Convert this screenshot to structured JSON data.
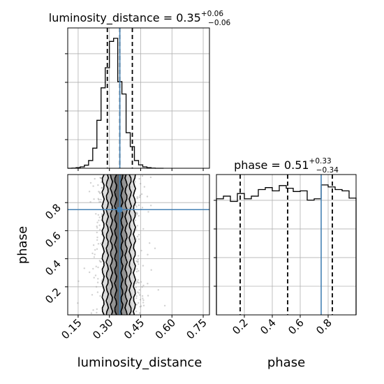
{
  "chart_data": {
    "type": "corner",
    "parameters": [
      "luminosity_distance",
      "phase"
    ],
    "truth": {
      "luminosity_distance": 0.35,
      "phase": 0.75
    },
    "truth_color": "#4682b4",
    "hist_color": "#000000",
    "grid": true,
    "axes": {
      "luminosity_distance": {
        "xlabel": "luminosity_distance",
        "range": [
          0.1,
          0.78
        ],
        "ticks": [
          0.15,
          0.3,
          0.45,
          0.6,
          0.75
        ],
        "tick_labels": [
          "0.15",
          "0.30",
          "0.45",
          "0.60",
          "0.75"
        ]
      },
      "phase": {
        "xlabel": "phase",
        "ylabel": "phase",
        "range": [
          0.0,
          1.0
        ],
        "ticks": [
          0.2,
          0.4,
          0.6,
          0.8
        ],
        "tick_labels": [
          "0.2",
          "0.4",
          "0.6",
          "0.8"
        ]
      }
    },
    "panels": [
      {
        "name": "luminosity_distance",
        "kind": "hist1d",
        "title": {
          "name": "luminosity_distance",
          "value": "0.35",
          "plus": "+0.06",
          "minus": "−0.06"
        },
        "quantiles": [
          0.29,
          0.35,
          0.41
        ],
        "bins": [
          0.1,
          0.12,
          0.14,
          0.16,
          0.18,
          0.2,
          0.22,
          0.24,
          0.26,
          0.28,
          0.3,
          0.32,
          0.34,
          0.36,
          0.38,
          0.4,
          0.42,
          0.44,
          0.46,
          0.48,
          0.5,
          0.52,
          0.54,
          0.56
        ],
        "counts": [
          0,
          1,
          4,
          9,
          20,
          50,
          130,
          310,
          520,
          650,
          820,
          840,
          560,
          480,
          230,
          140,
          50,
          22,
          9,
          4,
          1,
          0,
          0
        ]
      },
      {
        "name": "phase",
        "kind": "hist1d",
        "title": {
          "name": "phase",
          "value": "0.51",
          "plus": "+0.33",
          "minus": "−0.34"
        },
        "quantiles": [
          0.17,
          0.51,
          0.83
        ],
        "bins": [
          0.0,
          0.05,
          0.1,
          0.15,
          0.2,
          0.25,
          0.3,
          0.35,
          0.4,
          0.45,
          0.5,
          0.55,
          0.6,
          0.65,
          0.7,
          0.75,
          0.8,
          0.85,
          0.9,
          0.95,
          1.0
        ],
        "counts": [
          880,
          900,
          860,
          920,
          880,
          900,
          950,
          965,
          940,
          980,
          960,
          935,
          940,
          870,
          880,
          985,
          970,
          950,
          940,
          885
        ]
      },
      {
        "name": "luminosity_distance-phase",
        "kind": "hist2d",
        "x": "luminosity_distance",
        "y": "phase",
        "density_center_x": 0.345,
        "contours_x_halfwidth": [
          0.015,
          0.035,
          0.055,
          0.075
        ]
      }
    ]
  }
}
